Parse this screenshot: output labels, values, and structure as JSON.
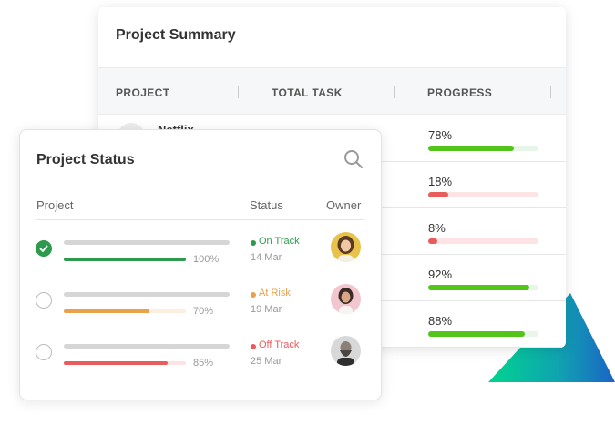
{
  "colors": {
    "green": "#2e9a4e",
    "lime": "#52c41a",
    "orange": "#e9a14c",
    "red": "#e85c5c",
    "light_red": "#fde3e3",
    "light_green": "#e8f5e9",
    "light_orange": "#fcefe0"
  },
  "summary": {
    "title": "Project Summary",
    "columns": [
      "PROJECT",
      "TOTAL TASK",
      "PROGRESS"
    ],
    "first_project": "Netflix",
    "rows": [
      {
        "progress": 0.78,
        "label": "78%",
        "color": "lime"
      },
      {
        "progress": 0.18,
        "label": "18%",
        "color": "red"
      },
      {
        "progress": 0.08,
        "label": "8%",
        "color": "red"
      },
      {
        "progress": 0.92,
        "label": "92%",
        "color": "lime"
      },
      {
        "progress": 0.88,
        "label": "88%",
        "color": "lime"
      }
    ]
  },
  "status": {
    "title": "Project Status",
    "headers": {
      "project": "Project",
      "status": "Status",
      "owner": "Owner"
    },
    "rows": [
      {
        "done": true,
        "progress": 1.0,
        "pct": "100%",
        "status": "On Track",
        "status_color": "green",
        "date": "14 Mar",
        "bar_color": "green",
        "owner": "woman-avatar-yellow"
      },
      {
        "done": false,
        "progress": 0.7,
        "pct": "70%",
        "status": "At Risk",
        "status_color": "orange",
        "date": "19 Mar",
        "bar_color": "orange",
        "owner": "woman-avatar-pink"
      },
      {
        "done": false,
        "progress": 0.85,
        "pct": "85%",
        "status": "Off Track",
        "status_color": "red",
        "date": "25 Mar",
        "bar_color": "red",
        "owner": "man-avatar-grey"
      }
    ]
  }
}
